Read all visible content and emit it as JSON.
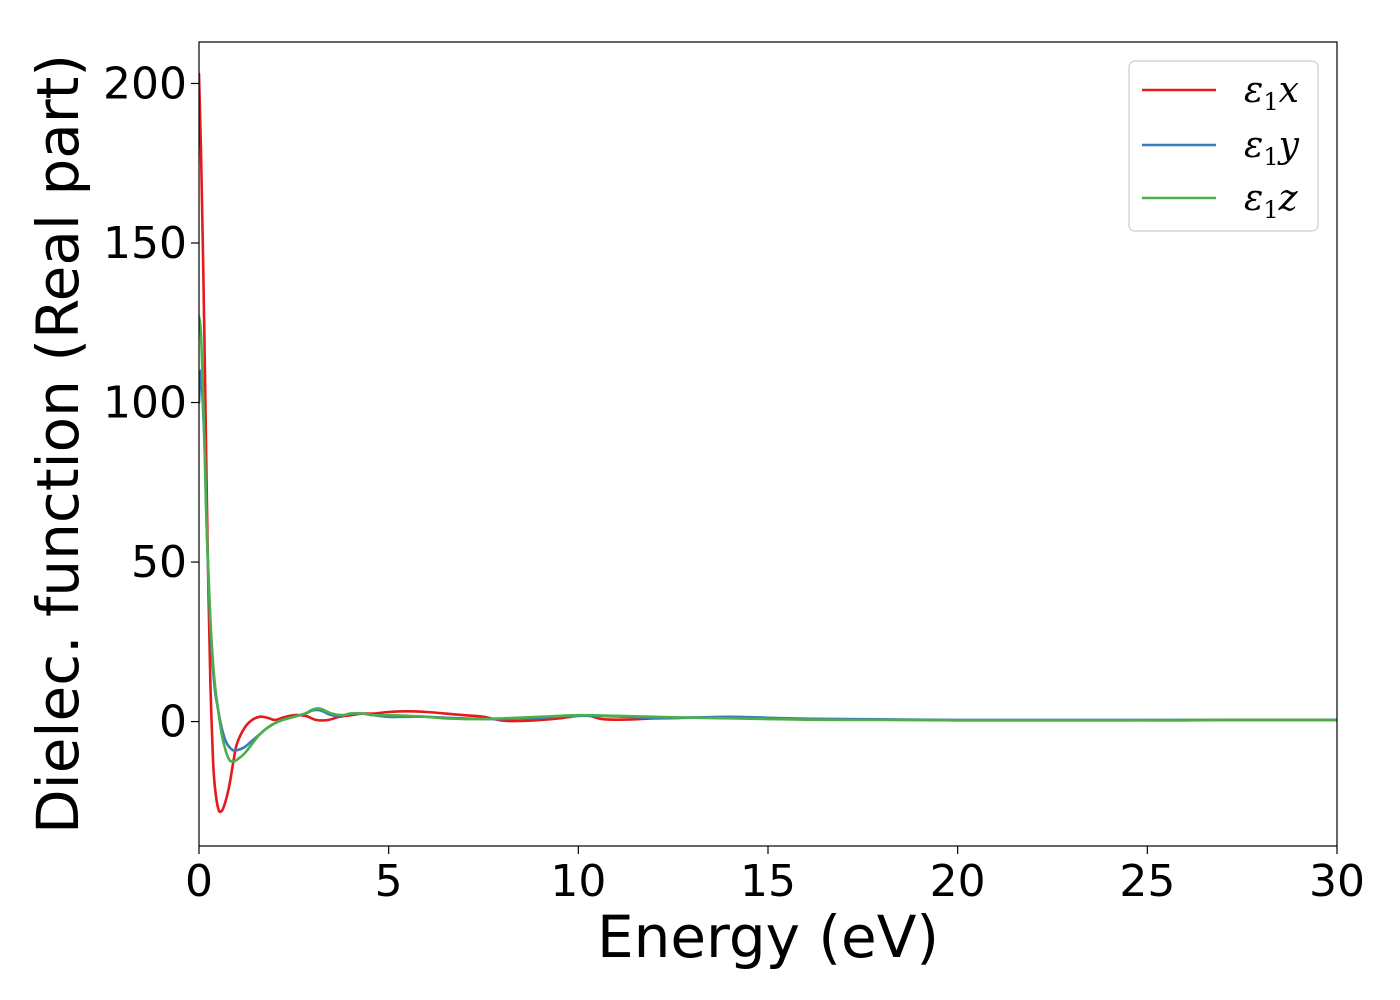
{
  "chart_data": {
    "type": "line",
    "title": "",
    "xlabel": "Energy (eV)",
    "ylabel": "Dielec. function (Real part)",
    "xlim": [
      0,
      30
    ],
    "ylim": [
      -39,
      213
    ],
    "xticks": [
      0,
      5,
      10,
      15,
      20,
      25,
      30
    ],
    "yticks": [
      0,
      50,
      100,
      150,
      200
    ],
    "grid": false,
    "legend_position": "top-right",
    "series": [
      {
        "name": "ε₁x",
        "legend_main": "ε",
        "legend_sub": "1",
        "legend_suffix": "x",
        "color": "#e41a1c",
        "x": [
          0.0,
          0.05,
          0.1,
          0.15,
          0.2,
          0.25,
          0.3,
          0.35,
          0.4,
          0.5,
          0.6,
          0.7,
          0.8,
          0.9,
          1.0,
          1.2,
          1.4,
          1.6,
          1.8,
          2.0,
          2.2,
          2.5,
          2.8,
          3.1,
          3.4,
          3.7,
          4.0,
          4.3,
          4.6,
          5.0,
          5.5,
          6.0,
          6.5,
          7.0,
          7.5,
          8.0,
          8.5,
          9.0,
          9.5,
          10.0,
          10.3,
          10.6,
          11.0,
          11.5,
          12.0,
          12.5,
          13.0,
          14.0,
          15.0,
          16.0,
          17.0,
          18.0,
          19.0,
          20.0,
          21.0,
          22.0,
          23.0,
          24.0,
          25.0,
          26.0,
          27.0,
          28.0,
          29.0,
          30.0
        ],
        "values": [
          203,
          180,
          150,
          115,
          75,
          40,
          12,
          -6,
          -18,
          -27,
          -28,
          -25,
          -20,
          -13,
          -7,
          -2,
          0.5,
          1.5,
          1.2,
          0.5,
          1.2,
          2.0,
          1.8,
          0.5,
          0.5,
          1.5,
          2.0,
          2.5,
          2.5,
          3.0,
          3.2,
          3.0,
          2.5,
          2.0,
          1.5,
          0.3,
          0.2,
          0.5,
          1.0,
          1.8,
          1.8,
          0.8,
          0.6,
          0.7,
          1.0,
          1.1,
          1.2,
          1.2,
          1.0,
          0.8,
          0.7,
          0.6,
          0.5,
          0.4,
          0.4,
          0.4,
          0.4,
          0.4,
          0.4,
          0.4,
          0.5,
          0.5,
          0.5,
          0.5
        ]
      },
      {
        "name": "ε₁y",
        "legend_main": "ε",
        "legend_sub": "1",
        "legend_suffix": "y",
        "color": "#377eb8",
        "x": [
          0.0,
          0.05,
          0.1,
          0.15,
          0.2,
          0.3,
          0.4,
          0.5,
          0.6,
          0.7,
          0.8,
          0.9,
          1.0,
          1.2,
          1.4,
          1.6,
          1.8,
          2.0,
          2.2,
          2.5,
          2.8,
          3.0,
          3.2,
          3.5,
          3.8,
          4.0,
          4.3,
          4.6,
          5.0,
          5.5,
          6.0,
          6.5,
          7.0,
          7.5,
          8.0,
          9.0,
          10.0,
          11.0,
          12.0,
          13.0,
          14.0,
          15.0,
          16.0,
          17.0,
          18.0,
          19.0,
          20.0,
          22.0,
          24.0,
          26.0,
          28.0,
          30.0
        ],
        "values": [
          100,
          110,
          100,
          85,
          62,
          30,
          12,
          4,
          -2,
          -6,
          -8,
          -9,
          -9,
          -8,
          -6,
          -4,
          -2,
          -0.5,
          0.5,
          1.5,
          2.5,
          3.5,
          3.5,
          2.0,
          2.0,
          2.5,
          2.5,
          2.0,
          1.5,
          1.5,
          1.5,
          1.2,
          1.0,
          0.8,
          0.8,
          1.2,
          1.8,
          1.6,
          1.2,
          1.3,
          1.5,
          1.2,
          0.9,
          0.8,
          0.7,
          0.6,
          0.5,
          0.5,
          0.5,
          0.5,
          0.5,
          0.5
        ]
      },
      {
        "name": "ε₁z",
        "legend_main": "ε",
        "legend_sub": "1",
        "legend_suffix": "z",
        "color": "#4daf4a",
        "x": [
          0.0,
          0.05,
          0.1,
          0.15,
          0.2,
          0.3,
          0.4,
          0.5,
          0.6,
          0.7,
          0.8,
          0.9,
          1.0,
          1.2,
          1.4,
          1.6,
          1.8,
          2.0,
          2.2,
          2.5,
          2.8,
          3.0,
          3.2,
          3.5,
          3.8,
          4.0,
          4.3,
          4.6,
          5.0,
          5.5,
          6.0,
          6.5,
          7.0,
          7.5,
          8.0,
          9.0,
          10.0,
          11.0,
          12.0,
          13.0,
          14.0,
          15.0,
          16.0,
          17.0,
          18.0,
          19.0,
          20.0,
          22.0,
          24.0,
          26.0,
          28.0,
          30.0
        ],
        "values": [
          127,
          122,
          105,
          85,
          62,
          32,
          14,
          4,
          -4,
          -9,
          -12,
          -12.5,
          -12,
          -10,
          -7,
          -4,
          -2,
          -0.5,
          0.5,
          1.5,
          2.5,
          3.8,
          4.0,
          2.5,
          2.0,
          2.5,
          2.5,
          2.0,
          2.0,
          1.8,
          1.5,
          1.0,
          0.8,
          0.8,
          1.0,
          1.5,
          2.0,
          1.8,
          1.5,
          1.2,
          1.0,
          0.8,
          0.6,
          0.5,
          0.5,
          0.5,
          0.4,
          0.4,
          0.4,
          0.5,
          0.5,
          0.5
        ]
      }
    ]
  }
}
